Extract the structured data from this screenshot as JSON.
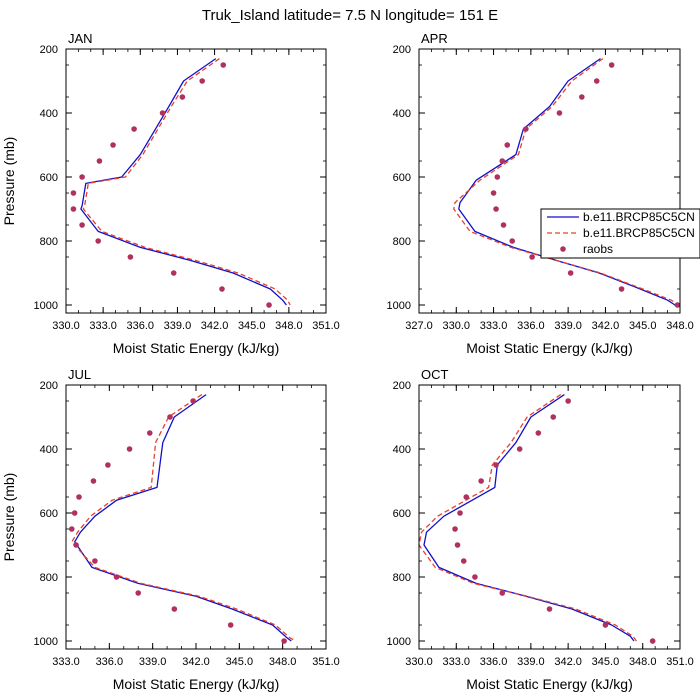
{
  "title": "Truk_Island  latitude= 7.5 N longitude= 151 E",
  "legend": {
    "placement": "right of APR panel",
    "entries": [
      {
        "label": "b.e11.BRCP85C5CN",
        "style": "solid",
        "color": "#1010cc"
      },
      {
        "label": "b.e11.BRCP85C5CN",
        "style": "dashed",
        "color": "#e8402a"
      },
      {
        "label": "raobs",
        "style": "marker",
        "color": "#b03060"
      }
    ]
  },
  "chart_data": [
    {
      "type": "line",
      "panel": "JAN",
      "xlabel": "Moist Static Energy (kJ/kg)",
      "ylabel": "Pressure (mb)",
      "xlim": [
        330,
        351
      ],
      "ylim": [
        1025,
        200
      ],
      "xticks": [
        "330.0",
        "333.0",
        "336.0",
        "339.0",
        "342.0",
        "345.0",
        "348.0",
        "351.0"
      ],
      "yticks": [
        "200",
        "400",
        "600",
        "800",
        "1000"
      ],
      "series": [
        {
          "name": "b.e11.BRCP85C5CN",
          "style": "solid",
          "color": "#1010cc",
          "x": [
            342.1,
            339.5,
            338.3,
            336.0,
            334.5,
            331.6,
            331.3,
            331.2,
            332.6,
            336.0,
            340.0,
            343.5,
            346.5,
            347.5,
            347.8
          ],
          "y": [
            230,
            300,
            380,
            530,
            600,
            620,
            690,
            700,
            770,
            820,
            860,
            900,
            950,
            985,
            1000
          ]
        },
        {
          "name": "b.e11.BRCP85C5CN",
          "style": "dashed",
          "color": "#e8402a",
          "x": [
            342.4,
            339.8,
            338.5,
            336.2,
            334.8,
            331.8,
            331.5,
            331.4,
            332.9,
            336.4,
            340.4,
            343.9,
            346.9,
            347.9,
            348.1
          ],
          "y": [
            230,
            300,
            380,
            530,
            600,
            620,
            690,
            700,
            770,
            820,
            860,
            900,
            950,
            985,
            1000
          ]
        },
        {
          "name": "raobs",
          "style": "marker",
          "color": "#b03060",
          "x": [
            342.7,
            341.0,
            339.4,
            337.8,
            335.5,
            333.8,
            332.7,
            331.3,
            330.6,
            330.6,
            331.3,
            332.6,
            335.2,
            338.7,
            342.6,
            346.4
          ],
          "y": [
            250,
            300,
            350,
            400,
            450,
            500,
            550,
            600,
            650,
            700,
            750,
            800,
            850,
            900,
            950,
            1000
          ]
        }
      ]
    },
    {
      "type": "line",
      "panel": "APR",
      "xlabel": "Moist Static Energy (kJ/kg)",
      "ylabel": "",
      "xlim": [
        327,
        348
      ],
      "ylim": [
        1025,
        200
      ],
      "xticks": [
        "327.0",
        "330.0",
        "333.0",
        "336.0",
        "339.0",
        "342.0",
        "345.0",
        "348.0"
      ],
      "yticks": [
        "200",
        "400",
        "600",
        "800",
        "1000"
      ],
      "series": [
        {
          "name": "b.e11.BRCP85C5CN",
          "style": "solid",
          "color": "#1010cc",
          "x": [
            341.6,
            339.0,
            337.5,
            335.4,
            334.8,
            331.6,
            330.3,
            330.2,
            331.5,
            334.6,
            338.0,
            341.5,
            344.8,
            347.0,
            347.6
          ],
          "y": [
            230,
            300,
            380,
            450,
            530,
            610,
            680,
            700,
            770,
            820,
            860,
            900,
            950,
            985,
            1000
          ]
        },
        {
          "name": "b.e11.BRCP85C5CN",
          "style": "dashed",
          "color": "#e8402a",
          "x": [
            341.8,
            339.3,
            337.7,
            335.6,
            335.0,
            331.9,
            329.9,
            329.8,
            331.1,
            334.4,
            338.0,
            341.6,
            345.0,
            347.3,
            347.9
          ],
          "y": [
            230,
            300,
            380,
            450,
            530,
            610,
            680,
            700,
            770,
            820,
            860,
            900,
            950,
            985,
            1000
          ]
        },
        {
          "name": "raobs",
          "style": "marker",
          "color": "#b03060",
          "x": [
            342.5,
            341.3,
            340.1,
            338.3,
            335.6,
            334.1,
            333.7,
            333.3,
            333.0,
            333.2,
            333.8,
            334.5,
            336.1,
            339.2,
            343.3,
            347.8
          ],
          "y": [
            250,
            300,
            350,
            400,
            450,
            500,
            550,
            600,
            650,
            700,
            750,
            800,
            850,
            900,
            950,
            1000
          ]
        }
      ]
    },
    {
      "type": "line",
      "panel": "JUL",
      "xlabel": "Moist Static Energy (kJ/kg)",
      "ylabel": "Pressure (mb)",
      "xlim": [
        333,
        351
      ],
      "ylim": [
        1025,
        200
      ],
      "xticks": [
        "333.0",
        "336.0",
        "339.0",
        "342.0",
        "345.0",
        "348.0",
        "351.0"
      ],
      "yticks": [
        "200",
        "400",
        "600",
        "800",
        "1000"
      ],
      "series": [
        {
          "name": "b.e11.BRCP85C5CN",
          "style": "solid",
          "color": "#1010cc",
          "x": [
            342.7,
            340.5,
            339.7,
            339.3,
            336.5,
            335.0,
            334.0,
            333.6,
            334.8,
            338.0,
            342.0,
            344.5,
            347.3,
            348.3,
            348.6
          ],
          "y": [
            230,
            300,
            380,
            520,
            560,
            610,
            660,
            690,
            770,
            820,
            860,
            900,
            950,
            990,
            1000
          ]
        },
        {
          "name": "b.e11.BRCP85C5CN",
          "style": "dashed",
          "color": "#e8402a",
          "x": [
            342.4,
            340.1,
            339.2,
            338.9,
            336.2,
            334.7,
            333.8,
            333.4,
            335.0,
            338.2,
            342.2,
            344.8,
            347.5,
            348.5,
            348.9
          ],
          "y": [
            230,
            300,
            380,
            520,
            560,
            610,
            660,
            690,
            770,
            820,
            860,
            900,
            950,
            990,
            1000
          ]
        },
        {
          "name": "raobs",
          "style": "marker",
          "color": "#b03060",
          "x": [
            341.8,
            340.2,
            338.8,
            337.4,
            335.9,
            334.9,
            333.9,
            333.6,
            333.4,
            333.7,
            335.0,
            336.5,
            338.0,
            340.5,
            344.4,
            348.1
          ],
          "y": [
            250,
            300,
            350,
            400,
            450,
            500,
            550,
            600,
            650,
            700,
            750,
            800,
            850,
            900,
            950,
            1000
          ]
        }
      ]
    },
    {
      "type": "line",
      "panel": "OCT",
      "xlabel": "Moist Static Energy (kJ/kg)",
      "ylabel": "",
      "xlim": [
        330,
        351
      ],
      "ylim": [
        1025,
        200
      ],
      "xticks": [
        "330.0",
        "333.0",
        "336.0",
        "339.0",
        "342.0",
        "345.0",
        "348.0",
        "351.0"
      ],
      "yticks": [
        "200",
        "400",
        "600",
        "800",
        "1000"
      ],
      "series": [
        {
          "name": "b.e11.BRCP85C5CN",
          "style": "solid",
          "color": "#1010cc",
          "x": [
            341.7,
            339.0,
            337.8,
            336.3,
            336.1,
            332.0,
            330.6,
            330.4,
            331.6,
            334.6,
            338.6,
            342.3,
            345.5,
            347.0,
            347.3
          ],
          "y": [
            230,
            300,
            380,
            450,
            520,
            610,
            660,
            700,
            770,
            820,
            860,
            900,
            950,
            985,
            1000
          ]
        },
        {
          "name": "b.e11.BRCP85C5CN",
          "style": "dashed",
          "color": "#e8402a",
          "x": [
            341.4,
            338.7,
            337.4,
            335.9,
            335.6,
            331.5,
            330.2,
            330.0,
            331.3,
            334.4,
            338.7,
            342.6,
            345.8,
            347.2,
            347.5
          ],
          "y": [
            230,
            300,
            380,
            450,
            520,
            610,
            660,
            700,
            770,
            820,
            860,
            900,
            950,
            985,
            1000
          ]
        },
        {
          "name": "raobs",
          "style": "marker",
          "color": "#b03060",
          "x": [
            342.0,
            340.8,
            339.6,
            338.1,
            336.2,
            335.0,
            333.8,
            333.3,
            332.9,
            333.1,
            333.6,
            334.5,
            336.7,
            340.5,
            345.0,
            348.8
          ],
          "y": [
            250,
            300,
            350,
            400,
            450,
            500,
            550,
            600,
            650,
            700,
            750,
            800,
            850,
            900,
            950,
            1000
          ]
        }
      ]
    }
  ]
}
